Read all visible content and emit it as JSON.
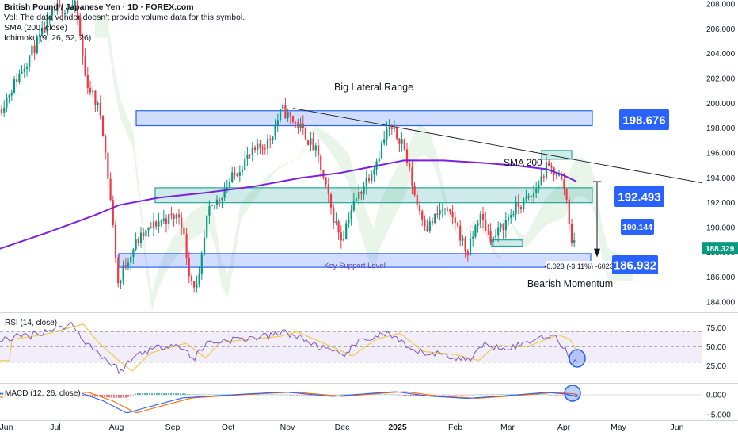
{
  "header": {
    "title": "British Pound / Japanese Yen · 1D · FOREX.com",
    "volume_note": "Vol: The data vendor doesn't provide volume data for this symbol.",
    "sma_label": "SMA (200, close)",
    "ichimoku_label": "Ichimoku (9, 26, 52, 26)"
  },
  "price_axis": {
    "ticks": [
      "208.000",
      "206.000",
      "204.000",
      "202.000",
      "200.000",
      "198.000",
      "196.000",
      "194.000",
      "192.000",
      "190.000",
      "188.000",
      "186.000",
      "184.000"
    ],
    "current_price": "188.329",
    "current_color": "#089981"
  },
  "time_axis": {
    "ticks": [
      "Jun",
      "Jul",
      "Aug",
      "Sep",
      "Oct",
      "Nov",
      "Dec",
      "2025",
      "Feb",
      "Mar",
      "Apr",
      "May",
      "Jun"
    ]
  },
  "annotations": {
    "range_title": "Big Lateral Range",
    "sma_text": "SMA 200",
    "key_support": "Key Support Level",
    "bearish": "Bearish Momentum",
    "measure": "-6.023 (-3.11%) -6023",
    "badge_top": "198.676",
    "badge_mid": "192.493",
    "badge_small": "190.144",
    "badge_low": "186.932"
  },
  "rsi": {
    "label": "RSI (14, close)",
    "ticks": [
      "75.00",
      "50.00",
      "25.00"
    ]
  },
  "macd": {
    "label": "MACD (12, 26, close)",
    "ticks": [
      "0.000",
      "−5.000"
    ]
  },
  "colors": {
    "up": "#089981",
    "down": "#f23645",
    "sma": "#7b1fe0",
    "zone_blue": "#2962ff",
    "zone_green": "#26a69a",
    "badge_blue": "#2962ff",
    "rsi_line": "#7e57c2",
    "rsi_ma": "#f2c94c",
    "macd_line": "#2962ff",
    "signal_line": "#ff6d00"
  },
  "chart_data": {
    "type": "candlestick",
    "symbol": "British Pound / Japanese Yen",
    "interval": "1D",
    "ylim": [
      183.0,
      208.3
    ],
    "levels": {
      "resistance_zone": [
        198.2,
        199.4
      ],
      "mid_zone": [
        192.0,
        193.2
      ],
      "support_zone": [
        186.8,
        187.9
      ]
    },
    "points": [
      {
        "x": "Jun",
        "y": 199.5
      },
      {
        "x": "Jul",
        "y": 208.0
      },
      {
        "x": "Aug",
        "y": 185.0
      },
      {
        "x": "Sep",
        "y": 191.0
      },
      {
        "x": "Oct",
        "y": 194.5
      },
      {
        "x": "Nov",
        "y": 199.5
      },
      {
        "x": "Dec",
        "y": 191.5
      },
      {
        "x": "2025",
        "y": 198.0
      },
      {
        "x": "Feb",
        "y": 188.0
      },
      {
        "x": "Mar",
        "y": 188.8
      },
      {
        "x": "Apr",
        "y": 188.3
      }
    ],
    "sma200": [
      {
        "x": "Jun",
        "y": 188.3
      },
      {
        "x": "Aug",
        "y": 192.0
      },
      {
        "x": "Oct",
        "y": 193.2
      },
      {
        "x": "Dec",
        "y": 194.5
      },
      {
        "x": "2025",
        "y": 195.4
      },
      {
        "x": "Mar",
        "y": 195.0
      },
      {
        "x": "Apr",
        "y": 193.8
      }
    ],
    "rsi_ylim": [
      10,
      85
    ],
    "rsi_levels": [
      70,
      50,
      30
    ],
    "macd_ylim": [
      -6,
      2
    ]
  }
}
